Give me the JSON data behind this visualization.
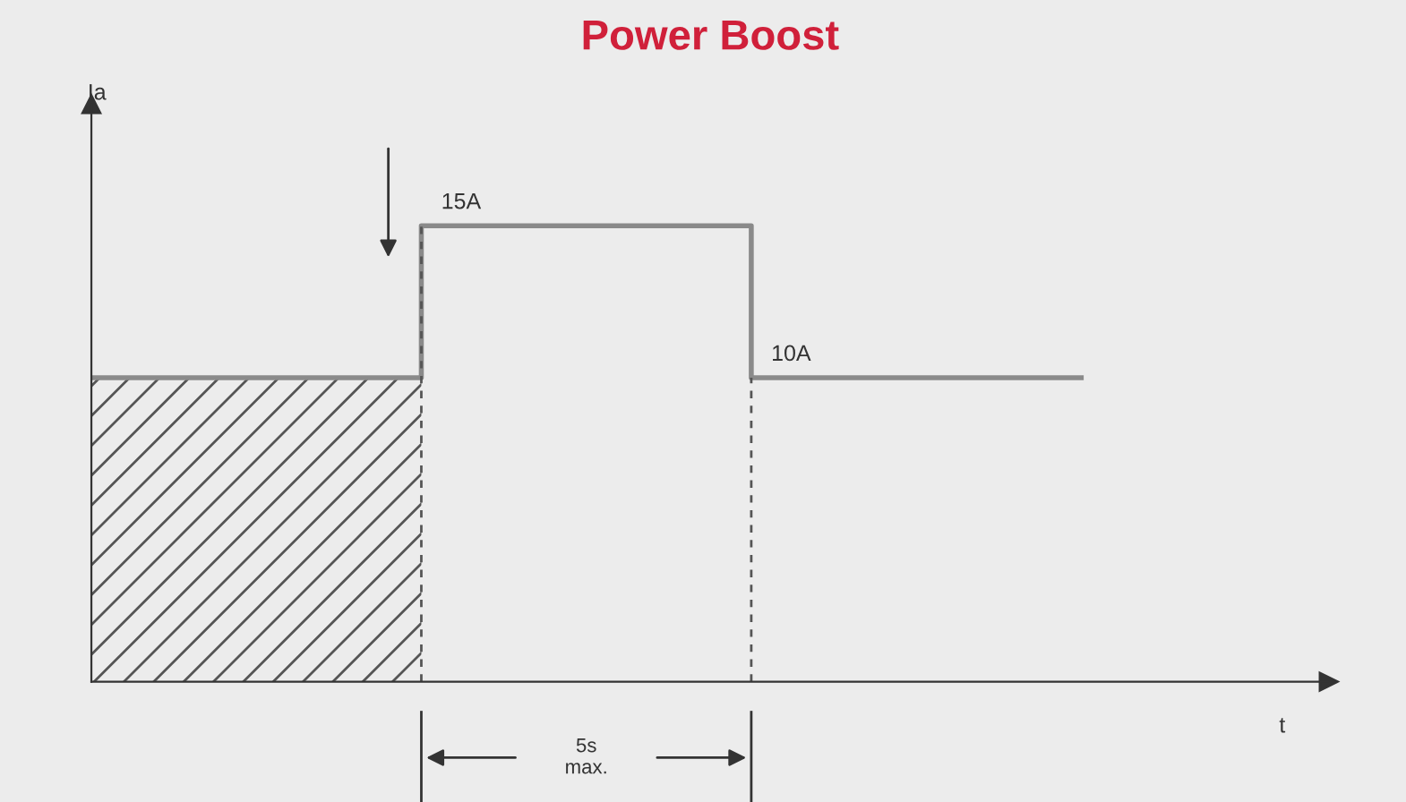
{
  "chart_data": {
    "type": "step",
    "title": "Power Boost",
    "xlabel": "t",
    "ylabel": "Ia",
    "categories": [
      null,
      null,
      null,
      null
    ],
    "series": [
      {
        "color": "#8a8a8a",
        "values": [
          10,
          15,
          10,
          10
        ],
        "value_labels": [
          null,
          "15A",
          "10A",
          null
        ]
      },
      {
        "type": "area",
        "color": "#555555",
        "values": [
          10,
          10,
          null,
          null
        ]
      }
    ],
    "ylim": [
      0,
      19
    ],
    "annotations": [
      "5s\nmax."
    ],
    "grid": false,
    "legend": false
  }
}
